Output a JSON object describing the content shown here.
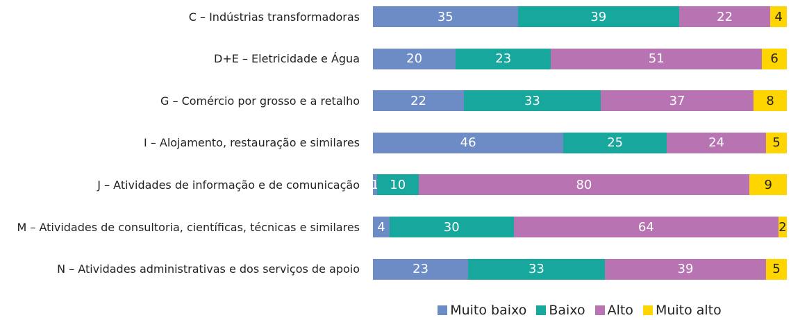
{
  "chart_data": {
    "type": "bar",
    "orientation": "horizontal",
    "stacked": true,
    "categories": [
      "C – Indústrias transformadoras",
      "D+E – Eletricidade e Água",
      "G – Comércio por grosso e a retalho",
      "I – Alojamento, restauração e similares",
      "J – Atividades de informação e de comunicação",
      "M – Atividades de consultoria, científicas, técnicas e similares",
      "N – Atividades administrativas e dos serviços de apoio"
    ],
    "series": [
      {
        "name": "Muito baixo",
        "color": "#6d8cc6",
        "values": [
          35,
          20,
          22,
          46,
          1,
          4,
          23
        ]
      },
      {
        "name": "Baixo",
        "color": "#18a79d",
        "values": [
          39,
          23,
          33,
          25,
          10,
          30,
          33
        ]
      },
      {
        "name": "Alto",
        "color": "#b873b3",
        "values": [
          22,
          51,
          37,
          24,
          80,
          64,
          39
        ]
      },
      {
        "name": "Muito alto",
        "color": "#ffd500",
        "values": [
          4,
          6,
          8,
          5,
          9,
          2,
          5
        ]
      }
    ],
    "legend": "bottom"
  }
}
